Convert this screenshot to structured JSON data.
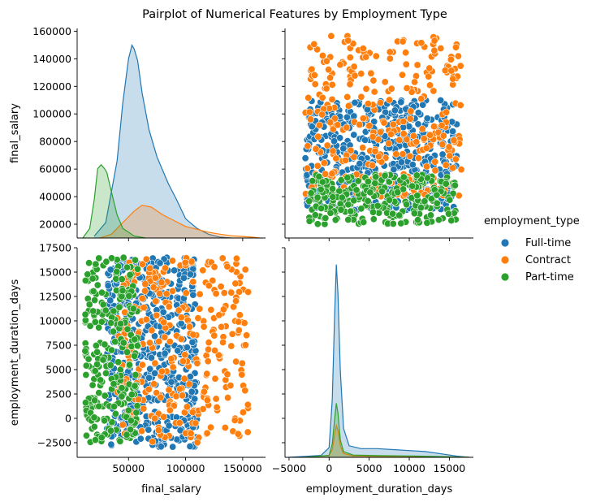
{
  "title": "Pairplot of Numerical Features by Employment Type",
  "colors": {
    "Full-time": "#1f77b4",
    "Contract": "#ff7f0e",
    "Part-time": "#2ca02c"
  },
  "chart_data": {
    "type": "pairplot",
    "variables": [
      "final_salary",
      "employment_duration_days"
    ],
    "legend": {
      "title": "employment_type",
      "entries": [
        "Full-time",
        "Contract",
        "Part-time"
      ],
      "placement": "right"
    },
    "axes": {
      "final_salary": {
        "label": "final_salary",
        "range": [
          5000,
          170000
        ],
        "ticks": [
          50000,
          100000,
          150000
        ],
        "tick_labels": [
          "50000",
          "100000",
          "150000"
        ],
        "y_range": [
          10000,
          162000
        ],
        "y_ticks": [
          20000,
          40000,
          60000,
          80000,
          100000,
          120000,
          140000,
          160000
        ],
        "y_tick_labels": [
          "20000",
          "40000",
          "60000",
          "80000",
          "100000",
          "120000",
          "140000",
          "160000"
        ]
      },
      "employment_duration_days": {
        "label": "employment_duration_days",
        "range": [
          -5500,
          18000
        ],
        "ticks": [
          -5000,
          0,
          5000,
          10000,
          15000
        ],
        "tick_labels": [
          "−5000",
          "0",
          "5000",
          "10000",
          "15000"
        ],
        "y_range": [
          -4000,
          17500
        ],
        "y_ticks": [
          -2500,
          0,
          2500,
          5000,
          7500,
          10000,
          12500,
          15000,
          17500
        ],
        "y_tick_labels": [
          "−2500",
          "0",
          "2500",
          "5000",
          "7500",
          "10000",
          "12500",
          "15000",
          "17500"
        ]
      }
    },
    "panels": [
      {
        "row": "final_salary",
        "col": "final_salary",
        "kind": "kde",
        "series": [
          {
            "name": "Full-time",
            "x": [
              20000,
              30000,
              40000,
              45000,
              50000,
              53000,
              55000,
              58000,
              62000,
              68000,
              75000,
              85000,
              92000,
              100000,
              110000,
              120000,
              130000,
              140000
            ],
            "density": [
              0.01,
              0.08,
              0.4,
              0.7,
              0.93,
              1.0,
              0.98,
              0.92,
              0.75,
              0.56,
              0.42,
              0.28,
              0.2,
              0.1,
              0.05,
              0.02,
              0.005,
              0.0
            ]
          },
          {
            "name": "Contract",
            "x": [
              25000,
              35000,
              45000,
              55000,
              62000,
              70000,
              80000,
              90000,
              100000,
              110000,
              120000,
              130000,
              140000,
              150000,
              160000,
              165000
            ],
            "density": [
              0.0,
              0.02,
              0.08,
              0.14,
              0.17,
              0.16,
              0.12,
              0.09,
              0.06,
              0.045,
              0.03,
              0.02,
              0.012,
              0.008,
              0.004,
              0.0
            ]
          },
          {
            "name": "Part-time",
            "x": [
              10000,
              16000,
              20000,
              23000,
              26000,
              29000,
              31000,
              35000,
              40000,
              45000,
              55000,
              65000
            ],
            "density": [
              0.0,
              0.05,
              0.2,
              0.36,
              0.38,
              0.36,
              0.34,
              0.24,
              0.12,
              0.05,
              0.01,
              0.0
            ]
          }
        ]
      },
      {
        "row": "final_salary",
        "col": "employment_duration_days",
        "kind": "scatter",
        "series": [
          {
            "name": "Full-time",
            "x_range": [
              -3000,
              16000
            ],
            "y_range": [
              30000,
              110000
            ]
          },
          {
            "name": "Contract",
            "x_range": [
              -3000,
              16500
            ],
            "y_range": [
              40000,
              157000
            ]
          },
          {
            "name": "Part-time",
            "x_range": [
              -2500,
              16000
            ],
            "y_range": [
              20000,
              56000
            ]
          }
        ]
      },
      {
        "row": "employment_duration_days",
        "col": "final_salary",
        "kind": "scatter",
        "series": [
          {
            "name": "Full-time",
            "x_range": [
              30000,
              110000
            ],
            "y_range": [
              -3000,
              16500
            ]
          },
          {
            "name": "Contract",
            "x_range": [
              40000,
              155000
            ],
            "y_range": [
              -2500,
              16500
            ]
          },
          {
            "name": "Part-time",
            "x_range": [
              12000,
              58000
            ],
            "y_range": [
              -2500,
              16500
            ]
          }
        ]
      },
      {
        "row": "employment_duration_days",
        "col": "employment_duration_days",
        "kind": "kde",
        "series": [
          {
            "name": "Full-time",
            "x": [
              -5000,
              -1000,
              0,
              400,
              700,
              900,
              1100,
              1400,
              1800,
              2500,
              4000,
              6000,
              8000,
              10000,
              12000,
              14000,
              16000,
              17500
            ],
            "density": [
              0.0,
              0.01,
              0.05,
              0.3,
              0.75,
              1.0,
              0.85,
              0.45,
              0.15,
              0.06,
              0.045,
              0.045,
              0.04,
              0.035,
              0.03,
              0.018,
              0.006,
              0.0
            ]
          },
          {
            "name": "Contract",
            "x": [
              -3000,
              0,
              400,
              700,
              900,
              1100,
              1400,
              1800,
              3000,
              6000,
              10000,
              14000,
              17500
            ],
            "density": [
              0.0,
              0.01,
              0.04,
              0.12,
              0.165,
              0.14,
              0.06,
              0.02,
              0.008,
              0.006,
              0.005,
              0.003,
              0.0
            ]
          },
          {
            "name": "Part-time",
            "x": [
              -3000,
              0,
              400,
              700,
              900,
              1100,
              1400,
              1800,
              3000,
              6000,
              10000,
              14000,
              17500
            ],
            "density": [
              0.0,
              0.01,
              0.07,
              0.2,
              0.28,
              0.23,
              0.09,
              0.03,
              0.012,
              0.009,
              0.007,
              0.004,
              0.0
            ]
          }
        ]
      }
    ]
  }
}
